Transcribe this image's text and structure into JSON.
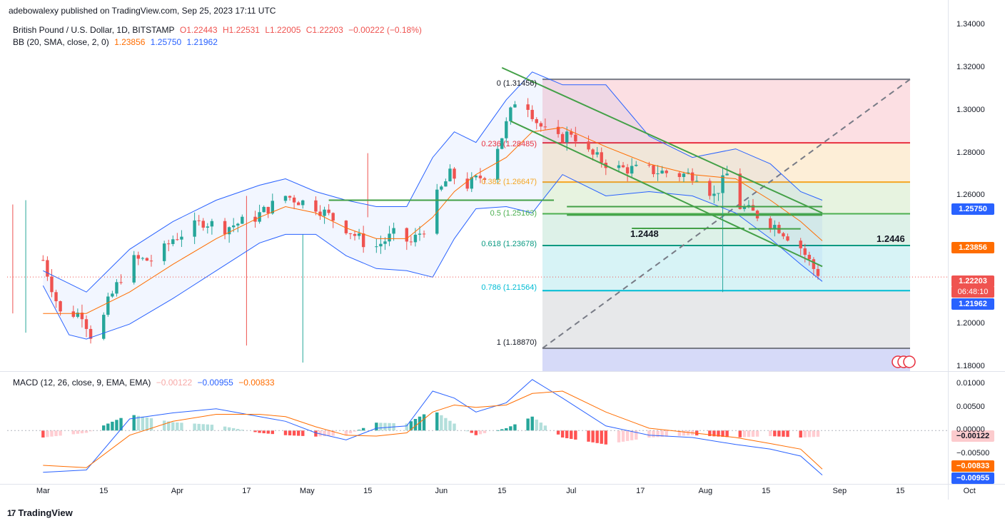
{
  "header": {
    "publisher": "adebowalexy published on TradingView.com, Sep 25, 2023 17:11 UTC",
    "symbol": "British Pound / U.S. Dollar, 1D, BITSTAMP",
    "open": "O1.22443",
    "high": "H1.22531",
    "low": "L1.22005",
    "close": "C1.22203",
    "change": "−0.00222 (−0.18%)",
    "bb_label": "BB (20, SMA, close, 2, 0)",
    "bb_mid": "1.23856",
    "bb_upper": "1.25750",
    "bb_lower": "1.21962",
    "macd_label": "MACD (12, 26, close, 9, EMA, EMA)",
    "macd_hist": "−0.00122",
    "macd_line": "−0.00955",
    "macd_signal": "−0.00833"
  },
  "footer": {
    "brand": "TradingView"
  },
  "price_tags": {
    "upper": "1.25750",
    "mid": "1.23856",
    "last": "1.22203",
    "countdown": "06:48:10",
    "lower": "1.21962",
    "macd_hist": "−0.00122",
    "macd_signal": "−0.00833",
    "macd_line": "−0.00955"
  },
  "annotations": {
    "level_a": "1.2448",
    "level_b": "1.2446"
  },
  "fib_labels": {
    "f0": "0 (1.31456)",
    "f236": "0.236 (1.28485)",
    "f382": "0.382 (1.26647)",
    "f5": "0.5 (1.25163)",
    "f618": "0.618 (1.23678)",
    "f786": "0.786 (1.21564)",
    "f1": "1 (1.18870)"
  },
  "colors": {
    "up": "#26a69a",
    "down": "#ef5350",
    "bb_band": "#2962ff",
    "bb_basis": "#ff6d00",
    "macd": "#2962ff",
    "signal": "#ff6d00",
    "trend": "#43a047"
  },
  "chart_data": {
    "type": "candlestick",
    "title": "British Pound / U.S. Dollar, 1D, BITSTAMP",
    "price_axis": {
      "ticks": [
        1.34,
        1.32,
        1.3,
        1.28,
        1.26,
        1.2,
        1.18
      ],
      "tick_labels": [
        "1.34000",
        "1.32000",
        "1.30000",
        "1.28000",
        "1.26000",
        "1.20000",
        "1.18000"
      ],
      "range": [
        1.178,
        1.345
      ]
    },
    "macd_axis": {
      "ticks": [
        0.01,
        0.005,
        0,
        -0.005
      ],
      "tick_labels": [
        "0.01000",
        "0.00500",
        "0.00000",
        "−0.00500"
      ],
      "range": [
        -0.0115,
        0.0125
      ]
    },
    "x_labels": [
      "Mar",
      "15",
      "Apr",
      "17",
      "May",
      "15",
      "Jun",
      "15",
      "Jul",
      "17",
      "Aug",
      "15",
      "Sep",
      "15",
      "Oct"
    ],
    "anchors": [
      {
        "d": 0,
        "c": 1.23
      },
      {
        "d": 4,
        "c": 1.205
      },
      {
        "d": 9,
        "c": 1.205
      },
      {
        "d": 12,
        "c": 1.19
      },
      {
        "d": 15,
        "c": 1.21
      },
      {
        "d": 20,
        "c": 1.23
      },
      {
        "d": 26,
        "c": 1.23
      },
      {
        "d": 30,
        "c": 1.24
      },
      {
        "d": 37,
        "c": 1.248
      },
      {
        "d": 42,
        "c": 1.245
      },
      {
        "d": 49,
        "c": 1.25
      },
      {
        "d": 56,
        "c": 1.26
      },
      {
        "d": 63,
        "c": 1.255
      },
      {
        "d": 70,
        "c": 1.245
      },
      {
        "d": 76,
        "c": 1.235
      },
      {
        "d": 81,
        "c": 1.242
      },
      {
        "d": 85,
        "c": 1.238
      },
      {
        "d": 88,
        "c": 1.245
      },
      {
        "d": 91,
        "c": 1.26
      },
      {
        "d": 94,
        "c": 1.27
      },
      {
        "d": 98,
        "c": 1.265
      },
      {
        "d": 102,
        "c": 1.27
      },
      {
        "d": 106,
        "c": 1.288
      },
      {
        "d": 110,
        "c": 1.31
      },
      {
        "d": 114,
        "c": 1.295
      },
      {
        "d": 118,
        "c": 1.285
      },
      {
        "d": 122,
        "c": 1.29
      },
      {
        "d": 126,
        "c": 1.28
      },
      {
        "d": 132,
        "c": 1.273
      },
      {
        "d": 140,
        "c": 1.272
      },
      {
        "d": 147,
        "c": 1.27
      },
      {
        "d": 151,
        "c": 1.27
      },
      {
        "d": 155,
        "c": 1.26
      },
      {
        "d": 158,
        "c": 1.27
      },
      {
        "d": 161,
        "c": 1.255
      },
      {
        "d": 166,
        "c": 1.25
      },
      {
        "d": 170,
        "c": 1.245
      },
      {
        "d": 175,
        "c": 1.236
      },
      {
        "d": 178,
        "c": 1.226
      },
      {
        "d": 180,
        "c": 1.222
      }
    ],
    "bollinger": {
      "upper": [
        [
          0,
          1.225
        ],
        [
          10,
          1.215
        ],
        [
          20,
          1.235
        ],
        [
          30,
          1.248
        ],
        [
          40,
          1.258
        ],
        [
          50,
          1.265
        ],
        [
          56,
          1.268
        ],
        [
          63,
          1.262
        ],
        [
          70,
          1.258
        ],
        [
          77,
          1.255
        ],
        [
          84,
          1.255
        ],
        [
          90,
          1.278
        ],
        [
          95,
          1.29
        ],
        [
          100,
          1.285
        ],
        [
          107,
          1.305
        ],
        [
          113,
          1.318
        ],
        [
          120,
          1.312
        ],
        [
          130,
          1.312
        ],
        [
          140,
          1.288
        ],
        [
          150,
          1.278
        ],
        [
          160,
          1.282
        ],
        [
          168,
          1.275
        ],
        [
          175,
          1.262
        ],
        [
          180,
          1.258
        ]
      ],
      "basis": [
        [
          0,
          1.205
        ],
        [
          10,
          1.205
        ],
        [
          20,
          1.215
        ],
        [
          30,
          1.228
        ],
        [
          40,
          1.24
        ],
        [
          50,
          1.25
        ],
        [
          56,
          1.255
        ],
        [
          63,
          1.252
        ],
        [
          70,
          1.245
        ],
        [
          77,
          1.24
        ],
        [
          84,
          1.24
        ],
        [
          90,
          1.25
        ],
        [
          95,
          1.262
        ],
        [
          100,
          1.27
        ],
        [
          107,
          1.278
        ],
        [
          113,
          1.29
        ],
        [
          120,
          1.292
        ],
        [
          130,
          1.283
        ],
        [
          140,
          1.275
        ],
        [
          150,
          1.27
        ],
        [
          160,
          1.268
        ],
        [
          168,
          1.258
        ],
        [
          175,
          1.248
        ],
        [
          180,
          1.239
        ]
      ],
      "lower": [
        [
          0,
          1.218
        ],
        [
          6,
          1.195
        ],
        [
          10,
          1.193
        ],
        [
          20,
          1.2
        ],
        [
          30,
          1.212
        ],
        [
          40,
          1.225
        ],
        [
          50,
          1.238
        ],
        [
          56,
          1.242
        ],
        [
          63,
          1.242
        ],
        [
          70,
          1.232
        ],
        [
          77,
          1.226
        ],
        [
          84,
          1.225
        ],
        [
          90,
          1.222
        ],
        [
          95,
          1.24
        ],
        [
          100,
          1.254
        ],
        [
          107,
          1.255
        ],
        [
          113,
          1.252
        ],
        [
          120,
          1.27
        ],
        [
          130,
          1.26
        ],
        [
          140,
          1.262
        ],
        [
          150,
          1.26
        ],
        [
          160,
          1.252
        ],
        [
          168,
          1.24
        ],
        [
          175,
          1.228
        ],
        [
          180,
          1.22
        ]
      ]
    },
    "macd": {
      "macd": [
        [
          0,
          -0.009
        ],
        [
          10,
          -0.0085
        ],
        [
          20,
          0.0025
        ],
        [
          30,
          0.0038
        ],
        [
          40,
          0.0047
        ],
        [
          50,
          0.003
        ],
        [
          56,
          0.002
        ],
        [
          63,
          -0.0005
        ],
        [
          70,
          -0.002
        ],
        [
          77,
          0.0005
        ],
        [
          84,
          0.001
        ],
        [
          90,
          0.0085
        ],
        [
          95,
          0.007
        ],
        [
          100,
          0.004
        ],
        [
          107,
          0.006
        ],
        [
          113,
          0.011
        ],
        [
          120,
          0.007
        ],
        [
          130,
          0.001
        ],
        [
          140,
          -0.001
        ],
        [
          150,
          -0.0015
        ],
        [
          160,
          -0.003
        ],
        [
          168,
          -0.004
        ],
        [
          175,
          -0.0055
        ],
        [
          180,
          -0.0096
        ]
      ],
      "signal": [
        [
          0,
          -0.0075
        ],
        [
          10,
          -0.008
        ],
        [
          20,
          -0.001
        ],
        [
          30,
          0.002
        ],
        [
          40,
          0.0035
        ],
        [
          50,
          0.0035
        ],
        [
          56,
          0.003
        ],
        [
          63,
          0.0008
        ],
        [
          70,
          -0.001
        ],
        [
          77,
          -0.0012
        ],
        [
          84,
          -0.0005
        ],
        [
          90,
          0.004
        ],
        [
          95,
          0.0055
        ],
        [
          100,
          0.005
        ],
        [
          107,
          0.0055
        ],
        [
          113,
          0.008
        ],
        [
          120,
          0.0085
        ],
        [
          130,
          0.004
        ],
        [
          140,
          0.0005
        ],
        [
          150,
          -0.0005
        ],
        [
          160,
          -0.0015
        ],
        [
          168,
          -0.0028
        ],
        [
          175,
          -0.004
        ],
        [
          180,
          -0.0083
        ]
      ]
    },
    "fib_levels": [
      {
        "ratio": "0",
        "price": 1.31456
      },
      {
        "ratio": "0.236",
        "price": 1.28485
      },
      {
        "ratio": "0.382",
        "price": 1.26647
      },
      {
        "ratio": "0.5",
        "price": 1.25163
      },
      {
        "ratio": "0.618",
        "price": 1.23678
      },
      {
        "ratio": "0.786",
        "price": 1.21564
      },
      {
        "ratio": "1",
        "price": 1.1887
      }
    ],
    "trendlines": [
      {
        "from": [
          106,
          1.32
        ],
        "to": [
          180,
          1.252
        ]
      },
      {
        "from": [
          108,
          1.295
        ],
        "to": [
          180,
          1.227
        ]
      },
      {
        "from": [
          66,
          1.258
        ],
        "to": [
          118,
          1.258
        ]
      },
      {
        "from": [
          121,
          1.251
        ],
        "to": [
          180,
          1.251
        ]
      },
      {
        "from": [
          121,
          1.255
        ],
        "to": [
          180,
          1.255
        ]
      }
    ],
    "levels": [
      {
        "label": "1.2448",
        "from": [
          136,
          1.2448
        ],
        "to": [
          162,
          1.2448
        ]
      },
      {
        "label": "1.2446",
        "from": [
          163,
          1.2446
        ],
        "to": [
          175,
          1.2446
        ]
      }
    ]
  }
}
